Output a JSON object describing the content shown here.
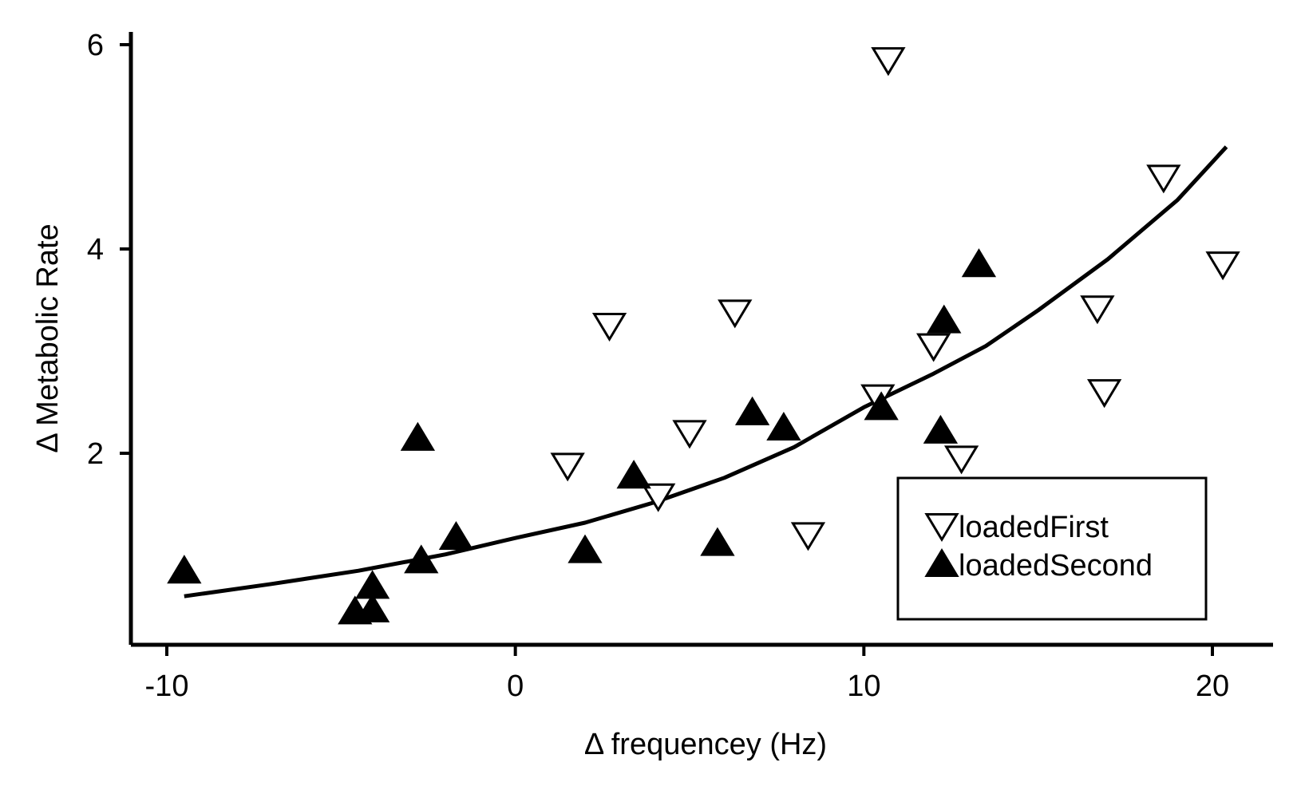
{
  "chart_data": {
    "type": "scatter",
    "title": "",
    "xlabel": "Δ  frequencey (Hz)",
    "ylabel": "Δ Metabolic Rate",
    "xlim": [
      -11,
      22
    ],
    "ylim": [
      0.2,
      6.3
    ],
    "xticks": [
      -10,
      0,
      10,
      20
    ],
    "xtick_labels": [
      "-10",
      "0",
      "10",
      "20"
    ],
    "yticks": [
      2,
      4,
      6
    ],
    "ytick_labels": [
      "2",
      "4",
      "6"
    ],
    "grid": false,
    "legend_position": "bottom-right",
    "series": [
      {
        "name": "loadedFirst",
        "marker": "open-down-triangle",
        "color": "#000000",
        "points": [
          [
            10.7,
            5.85
          ],
          [
            18.6,
            4.7
          ],
          [
            20.3,
            3.85
          ],
          [
            6.3,
            3.38
          ],
          [
            16.7,
            3.42
          ],
          [
            2.7,
            3.25
          ],
          [
            12.0,
            3.05
          ],
          [
            10.4,
            2.55
          ],
          [
            16.9,
            2.6
          ],
          [
            5.0,
            2.2
          ],
          [
            12.8,
            1.95
          ],
          [
            1.5,
            1.88
          ],
          [
            4.1,
            1.58
          ],
          [
            8.4,
            1.2
          ]
        ]
      },
      {
        "name": "loadedSecond",
        "marker": "filled-up-triangle",
        "color": "#000000",
        "points": [
          [
            13.3,
            3.85
          ],
          [
            12.3,
            3.3
          ],
          [
            10.5,
            2.45
          ],
          [
            6.8,
            2.4
          ],
          [
            7.7,
            2.25
          ],
          [
            12.2,
            2.22
          ],
          [
            -2.8,
            2.15
          ],
          [
            3.4,
            1.78
          ],
          [
            -1.7,
            1.18
          ],
          [
            2.0,
            1.05
          ],
          [
            5.8,
            1.12
          ],
          [
            -2.7,
            0.95
          ],
          [
            -9.5,
            0.85
          ],
          [
            -4.1,
            0.7
          ],
          [
            -4.6,
            0.45
          ],
          [
            -4.1,
            0.47
          ]
        ]
      }
    ],
    "fit_line": {
      "type": "line",
      "color": "#000000",
      "x": [
        -9.5,
        -7,
        -4.5,
        -2,
        0,
        2,
        4,
        6,
        8,
        10,
        12,
        13.5,
        15,
        17,
        19,
        20.4
      ],
      "y": [
        0.6,
        0.72,
        0.85,
        1.01,
        1.17,
        1.32,
        1.52,
        1.76,
        2.06,
        2.45,
        2.78,
        3.05,
        3.4,
        3.9,
        4.48,
        5.0
      ]
    }
  }
}
